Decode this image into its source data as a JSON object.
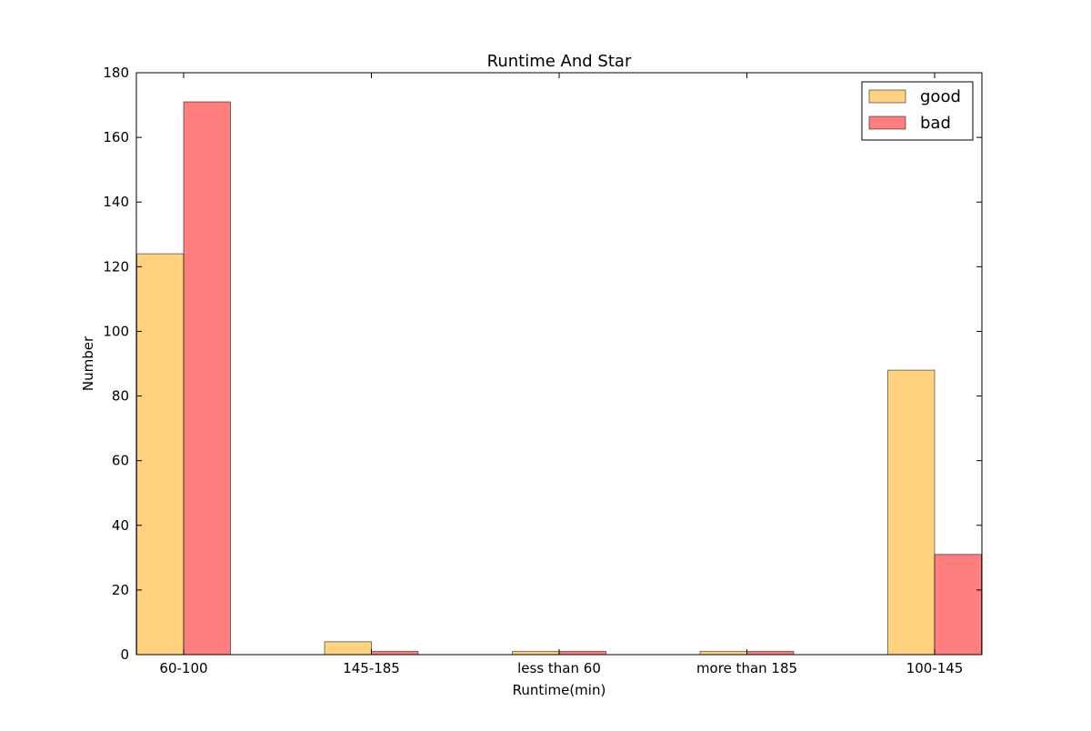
{
  "chart_data": {
    "type": "bar",
    "title": "Runtime And Star",
    "xlabel": "Runtime(min)",
    "ylabel": "Number",
    "categories": [
      "60-100",
      "145-185",
      "less than 60",
      "more than 185",
      "100-145"
    ],
    "series": [
      {
        "name": "good",
        "values": [
          124,
          4,
          1,
          1,
          88
        ],
        "color": "#ffa500",
        "opacity": 0.5
      },
      {
        "name": "bad",
        "values": [
          171,
          1,
          1,
          1,
          31
        ],
        "color": "#ff0000",
        "opacity": 0.5
      }
    ],
    "ylim": [
      0,
      180
    ],
    "yticks": [
      0,
      20,
      40,
      60,
      80,
      100,
      120,
      140,
      160,
      180
    ],
    "grid": false,
    "legend": "top-right"
  }
}
